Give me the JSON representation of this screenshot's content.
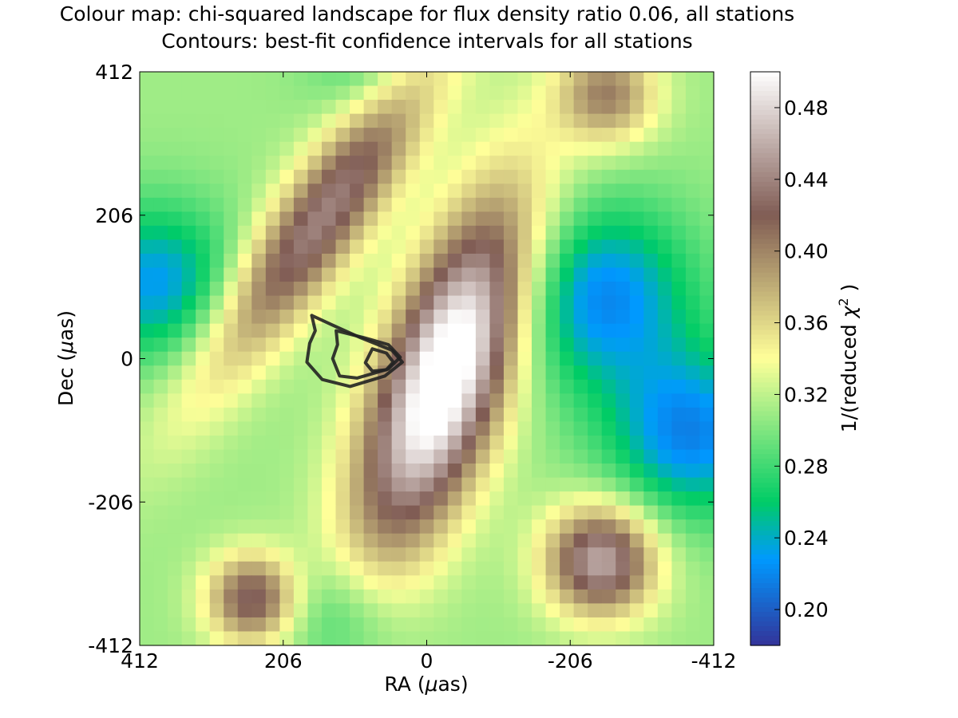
{
  "chart_data": {
    "type": "heatmap",
    "title": "Colour map: chi-squared landscape for flux density ratio 0.06, all stations",
    "subtitle": "Contours: best-fit confidence intervals for all stations",
    "xlabel_prefix": "RA (",
    "xlabel_symbol": "μ",
    "xlabel_suffix": "as)",
    "ylabel_prefix": "Dec (",
    "ylabel_symbol": "μ",
    "ylabel_suffix": "as)",
    "x_ticks": [
      "412",
      "206",
      "0",
      "-206",
      "-412"
    ],
    "x_tick_values": [
      412,
      206,
      0,
      -206,
      -412
    ],
    "y_ticks": [
      "412",
      "206",
      "0",
      "-206",
      "-412"
    ],
    "y_tick_values": [
      412,
      206,
      0,
      -206,
      -412
    ],
    "xlim": [
      412,
      -412
    ],
    "ylim": [
      -412,
      412
    ],
    "colorbar_label_prefix": "1/(reduced ",
    "colorbar_label_symbol": "χ",
    "colorbar_label_exp": "2",
    "colorbar_label_suffix": " )",
    "colorbar_ticks": [
      "0.48",
      "0.44",
      "0.40",
      "0.36",
      "0.32",
      "0.28",
      "0.24",
      "0.20"
    ],
    "colorbar_tick_values": [
      0.48,
      0.44,
      0.4,
      0.36,
      0.32,
      0.28,
      0.24,
      0.2
    ],
    "colorbar_range": [
      0.18,
      0.5
    ],
    "colormap": "terrain",
    "grid": false,
    "grid_size": [
      41,
      41
    ],
    "heatmap_features": [
      {
        "shape": "ridge",
        "center": [
          152,
          200
        ],
        "sigma_along": 200,
        "sigma_across": 45,
        "angle_deg": -55,
        "amp": 0.13
      },
      {
        "shape": "ridge",
        "center": [
          -28,
          -20
        ],
        "sigma_along": 185,
        "sigma_across": 62,
        "angle_deg": -70,
        "amp": 0.22
      },
      {
        "shape": "spot",
        "center": [
          -250,
          -290
        ],
        "sigma_along": 55,
        "sigma_across": 55,
        "angle_deg": 0,
        "amp": 0.15
      },
      {
        "shape": "spot",
        "center": [
          250,
          -345
        ],
        "sigma_along": 45,
        "sigma_across": 45,
        "angle_deg": 0,
        "amp": 0.12
      },
      {
        "shape": "spot",
        "center": [
          -260,
          380
        ],
        "sigma_along": 50,
        "sigma_across": 50,
        "angle_deg": 0,
        "amp": 0.09
      },
      {
        "shape": "spot",
        "center": [
          -250,
          90
        ],
        "sigma_along": 95,
        "sigma_across": 95,
        "angle_deg": 0,
        "amp": -0.09
      },
      {
        "shape": "spot",
        "center": [
          -380,
          -110
        ],
        "sigma_along": 85,
        "sigma_across": 85,
        "angle_deg": 0,
        "amp": -0.09
      },
      {
        "shape": "spot",
        "center": [
          390,
          110
        ],
        "sigma_along": 80,
        "sigma_across": 80,
        "angle_deg": 0,
        "amp": -0.08
      },
      {
        "shape": "spot",
        "center": [
          80,
          420
        ],
        "sigma_along": 60,
        "sigma_across": 60,
        "angle_deg": 0,
        "amp": -0.03
      },
      {
        "shape": "spot",
        "center": [
          130,
          -370
        ],
        "sigma_along": 60,
        "sigma_across": 60,
        "angle_deg": 0,
        "amp": -0.04
      }
    ],
    "heatmap_base": 0.31,
    "contours": [
      {
        "level": "outer",
        "points": [
          [
            165,
            62
          ],
          [
            135,
            48
          ],
          [
            95,
            30
          ],
          [
            50,
            12
          ],
          [
            35,
            -5
          ],
          [
            60,
            -25
          ],
          [
            110,
            -40
          ],
          [
            150,
            -30
          ],
          [
            172,
            -5
          ],
          [
            168,
            22
          ],
          [
            160,
            40
          ],
          [
            165,
            62
          ]
        ]
      },
      {
        "level": "middle",
        "points": [
          [
            130,
            40
          ],
          [
            90,
            30
          ],
          [
            55,
            20
          ],
          [
            38,
            2
          ],
          [
            55,
            -15
          ],
          [
            100,
            -28
          ],
          [
            125,
            -25
          ],
          [
            135,
            0
          ],
          [
            128,
            20
          ],
          [
            130,
            40
          ]
        ]
      },
      {
        "level": "inner",
        "points": [
          [
            78,
            14
          ],
          [
            58,
            8
          ],
          [
            48,
            -5
          ],
          [
            58,
            -16
          ],
          [
            78,
            -18
          ],
          [
            88,
            -6
          ],
          [
            78,
            14
          ]
        ]
      }
    ]
  }
}
